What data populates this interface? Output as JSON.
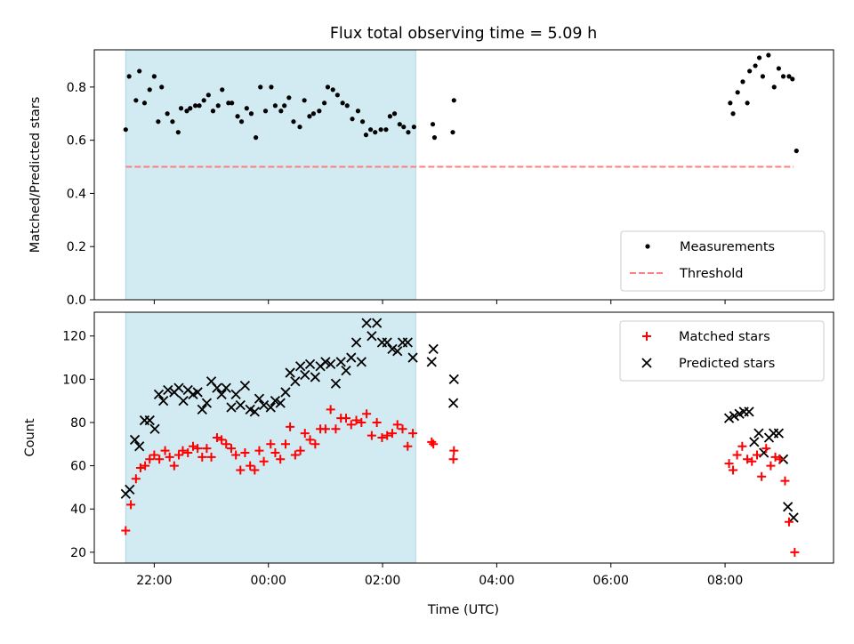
{
  "chart_data": {
    "type": "scatter",
    "title": "Flux total observing time = 5.09 h",
    "xlabel": "Time (UTC)",
    "x_unit": "hours relative to 00:00 UTC",
    "xlim": [
      -3.05,
      9.9
    ],
    "x_ticks": [
      {
        "value": -2,
        "label": "22:00"
      },
      {
        "value": 0,
        "label": "00:00"
      },
      {
        "value": 2,
        "label": "02:00"
      },
      {
        "value": 4,
        "label": "04:00"
      },
      {
        "value": 6,
        "label": "06:00"
      },
      {
        "value": 8,
        "label": "08:00"
      }
    ],
    "observing_window": [
      -2.5,
      2.58
    ],
    "colors": {
      "window": "#add8e6",
      "measurements": "#000000",
      "threshold": "#ff7f7f",
      "matched": "#ff0000",
      "predicted": "#000000"
    },
    "panels": [
      {
        "id": "ratio",
        "ylabel": "Matched/Predicted stars",
        "ylim": [
          0,
          0.94
        ],
        "y_ticks": [
          0,
          0.2,
          0.4,
          0.6,
          0.8
        ],
        "y_tick_labels": [
          "0.0",
          "0.2",
          "0.4",
          "0.6",
          "0.8"
        ],
        "legend_position": "lower-right",
        "legend": [
          "Measurements",
          "Threshold"
        ],
        "threshold": {
          "value": 0.5,
          "x": [
            -2.5,
            9.2
          ]
        },
        "measurements": [
          [
            -2.5,
            0.64
          ],
          [
            -2.44,
            0.84
          ],
          [
            -2.32,
            0.75
          ],
          [
            -2.26,
            0.86
          ],
          [
            -2.17,
            0.74
          ],
          [
            -2.08,
            0.79
          ],
          [
            -2.0,
            0.84
          ],
          [
            -1.93,
            0.67
          ],
          [
            -1.87,
            0.8
          ],
          [
            -1.77,
            0.7
          ],
          [
            -1.68,
            0.67
          ],
          [
            -1.58,
            0.63
          ],
          [
            -1.53,
            0.72
          ],
          [
            -1.43,
            0.71
          ],
          [
            -1.37,
            0.72
          ],
          [
            -1.28,
            0.73
          ],
          [
            -1.21,
            0.73
          ],
          [
            -1.13,
            0.75
          ],
          [
            -1.05,
            0.77
          ],
          [
            -0.97,
            0.71
          ],
          [
            -0.88,
            0.73
          ],
          [
            -0.81,
            0.79
          ],
          [
            -0.7,
            0.74
          ],
          [
            -0.64,
            0.74
          ],
          [
            -0.54,
            0.69
          ],
          [
            -0.47,
            0.67
          ],
          [
            -0.38,
            0.72
          ],
          [
            -0.3,
            0.7
          ],
          [
            -0.22,
            0.61
          ],
          [
            -0.14,
            0.8
          ],
          [
            -0.05,
            0.71
          ],
          [
            0.05,
            0.8
          ],
          [
            0.12,
            0.73
          ],
          [
            0.22,
            0.71
          ],
          [
            0.28,
            0.73
          ],
          [
            0.36,
            0.76
          ],
          [
            0.44,
            0.67
          ],
          [
            0.55,
            0.65
          ],
          [
            0.63,
            0.75
          ],
          [
            0.72,
            0.69
          ],
          [
            0.79,
            0.7
          ],
          [
            0.89,
            0.71
          ],
          [
            0.98,
            0.74
          ],
          [
            1.04,
            0.8
          ],
          [
            1.13,
            0.79
          ],
          [
            1.21,
            0.77
          ],
          [
            1.3,
            0.74
          ],
          [
            1.38,
            0.73
          ],
          [
            1.47,
            0.68
          ],
          [
            1.57,
            0.71
          ],
          [
            1.65,
            0.67
          ],
          [
            1.71,
            0.62
          ],
          [
            1.79,
            0.64
          ],
          [
            1.87,
            0.63
          ],
          [
            1.97,
            0.64
          ],
          [
            2.06,
            0.64
          ],
          [
            2.13,
            0.69
          ],
          [
            2.21,
            0.7
          ],
          [
            2.3,
            0.66
          ],
          [
            2.37,
            0.65
          ],
          [
            2.45,
            0.63
          ],
          [
            2.55,
            0.65
          ],
          [
            2.88,
            0.66
          ],
          [
            2.91,
            0.61
          ],
          [
            3.23,
            0.63
          ],
          [
            3.25,
            0.75
          ],
          [
            8.09,
            0.74
          ],
          [
            8.14,
            0.7
          ],
          [
            8.22,
            0.78
          ],
          [
            8.31,
            0.82
          ],
          [
            8.39,
            0.74
          ],
          [
            8.43,
            0.86
          ],
          [
            8.53,
            0.88
          ],
          [
            8.6,
            0.91
          ],
          [
            8.66,
            0.84
          ],
          [
            8.76,
            0.92
          ],
          [
            8.86,
            0.8
          ],
          [
            8.94,
            0.87
          ],
          [
            9.02,
            0.84
          ],
          [
            9.12,
            0.84
          ],
          [
            9.18,
            0.83
          ],
          [
            9.25,
            0.56
          ]
        ]
      },
      {
        "id": "count",
        "ylabel": "Count",
        "ylim": [
          15,
          131
        ],
        "y_ticks": [
          20,
          40,
          60,
          80,
          100,
          120
        ],
        "y_tick_labels": [
          "20",
          "40",
          "60",
          "80",
          "100",
          "120"
        ],
        "legend_position": "upper-right",
        "legend": [
          "Matched stars",
          "Predicted stars"
        ],
        "matched": [
          [
            -2.5,
            30
          ],
          [
            -2.41,
            42
          ],
          [
            -2.32,
            54
          ],
          [
            -2.24,
            59
          ],
          [
            -2.16,
            60
          ],
          [
            -2.08,
            63
          ],
          [
            -2.0,
            65
          ],
          [
            -1.91,
            63
          ],
          [
            -1.81,
            67
          ],
          [
            -1.73,
            64
          ],
          [
            -1.65,
            60
          ],
          [
            -1.57,
            65
          ],
          [
            -1.5,
            67
          ],
          [
            -1.41,
            66
          ],
          [
            -1.32,
            69
          ],
          [
            -1.24,
            68
          ],
          [
            -1.16,
            64
          ],
          [
            -1.08,
            68
          ],
          [
            -1.0,
            64
          ],
          [
            -0.9,
            73
          ],
          [
            -0.82,
            72
          ],
          [
            -0.74,
            70
          ],
          [
            -0.65,
            68
          ],
          [
            -0.57,
            65
          ],
          [
            -0.49,
            58
          ],
          [
            -0.41,
            66
          ],
          [
            -0.32,
            60
          ],
          [
            -0.24,
            58
          ],
          [
            -0.16,
            67
          ],
          [
            -0.08,
            62
          ],
          [
            0.04,
            70
          ],
          [
            0.12,
            66
          ],
          [
            0.21,
            63
          ],
          [
            0.3,
            70
          ],
          [
            0.38,
            78
          ],
          [
            0.47,
            65
          ],
          [
            0.56,
            67
          ],
          [
            0.64,
            75
          ],
          [
            0.73,
            72
          ],
          [
            0.82,
            70
          ],
          [
            0.91,
            77
          ],
          [
            1.0,
            77
          ],
          [
            1.09,
            86
          ],
          [
            1.18,
            77
          ],
          [
            1.27,
            82
          ],
          [
            1.36,
            82
          ],
          [
            1.45,
            79
          ],
          [
            1.54,
            81
          ],
          [
            1.63,
            80
          ],
          [
            1.72,
            84
          ],
          [
            1.81,
            74
          ],
          [
            1.9,
            80
          ],
          [
            1.99,
            73
          ],
          [
            2.08,
            74
          ],
          [
            2.17,
            75
          ],
          [
            2.26,
            79
          ],
          [
            2.35,
            77
          ],
          [
            2.44,
            69
          ],
          [
            2.53,
            75
          ],
          [
            2.86,
            71
          ],
          [
            2.89,
            70
          ],
          [
            3.24,
            63
          ],
          [
            3.25,
            67
          ],
          [
            8.07,
            61
          ],
          [
            8.14,
            58
          ],
          [
            8.21,
            65
          ],
          [
            8.3,
            69
          ],
          [
            8.39,
            63
          ],
          [
            8.47,
            62
          ],
          [
            8.56,
            65
          ],
          [
            8.64,
            55
          ],
          [
            8.72,
            68
          ],
          [
            8.8,
            60
          ],
          [
            8.88,
            64
          ],
          [
            8.96,
            63
          ],
          [
            9.05,
            53
          ],
          [
            9.12,
            34
          ],
          [
            9.22,
            20
          ]
        ],
        "predicted": [
          [
            -2.5,
            47
          ],
          [
            -2.43,
            49
          ],
          [
            -2.34,
            72
          ],
          [
            -2.26,
            69
          ],
          [
            -2.17,
            81
          ],
          [
            -2.08,
            81
          ],
          [
            -1.99,
            77
          ],
          [
            -1.92,
            93
          ],
          [
            -1.84,
            90
          ],
          [
            -1.76,
            95
          ],
          [
            -1.65,
            94
          ],
          [
            -1.57,
            96
          ],
          [
            -1.49,
            90
          ],
          [
            -1.41,
            95
          ],
          [
            -1.32,
            93
          ],
          [
            -1.24,
            94
          ],
          [
            -1.16,
            86
          ],
          [
            -1.08,
            89
          ],
          [
            -1.0,
            99
          ],
          [
            -0.9,
            96
          ],
          [
            -0.82,
            93
          ],
          [
            -0.74,
            96
          ],
          [
            -0.65,
            87
          ],
          [
            -0.57,
            93
          ],
          [
            -0.49,
            88
          ],
          [
            -0.41,
            97
          ],
          [
            -0.32,
            86
          ],
          [
            -0.24,
            85
          ],
          [
            -0.16,
            91
          ],
          [
            -0.08,
            88
          ],
          [
            0.04,
            87
          ],
          [
            0.12,
            90
          ],
          [
            0.21,
            89
          ],
          [
            0.3,
            94
          ],
          [
            0.38,
            103
          ],
          [
            0.47,
            99
          ],
          [
            0.56,
            106
          ],
          [
            0.64,
            102
          ],
          [
            0.73,
            107
          ],
          [
            0.82,
            101
          ],
          [
            0.91,
            106
          ],
          [
            1.0,
            108
          ],
          [
            1.09,
            107
          ],
          [
            1.18,
            98
          ],
          [
            1.27,
            108
          ],
          [
            1.36,
            104
          ],
          [
            1.45,
            110
          ],
          [
            1.54,
            117
          ],
          [
            1.63,
            108
          ],
          [
            1.72,
            126
          ],
          [
            1.81,
            120
          ],
          [
            1.9,
            126
          ],
          [
            1.99,
            117
          ],
          [
            2.08,
            117
          ],
          [
            2.17,
            114
          ],
          [
            2.26,
            113
          ],
          [
            2.35,
            117
          ],
          [
            2.44,
            117
          ],
          [
            2.53,
            110
          ],
          [
            2.86,
            108
          ],
          [
            2.89,
            114
          ],
          [
            3.24,
            89
          ],
          [
            3.25,
            100
          ],
          [
            8.07,
            82
          ],
          [
            8.16,
            83
          ],
          [
            8.25,
            84
          ],
          [
            8.33,
            85
          ],
          [
            8.42,
            85
          ],
          [
            8.51,
            71
          ],
          [
            8.59,
            75
          ],
          [
            8.68,
            66
          ],
          [
            8.77,
            73
          ],
          [
            8.85,
            75
          ],
          [
            8.94,
            75
          ],
          [
            9.02,
            63
          ],
          [
            9.1,
            41
          ],
          [
            9.2,
            36
          ]
        ]
      }
    ]
  }
}
